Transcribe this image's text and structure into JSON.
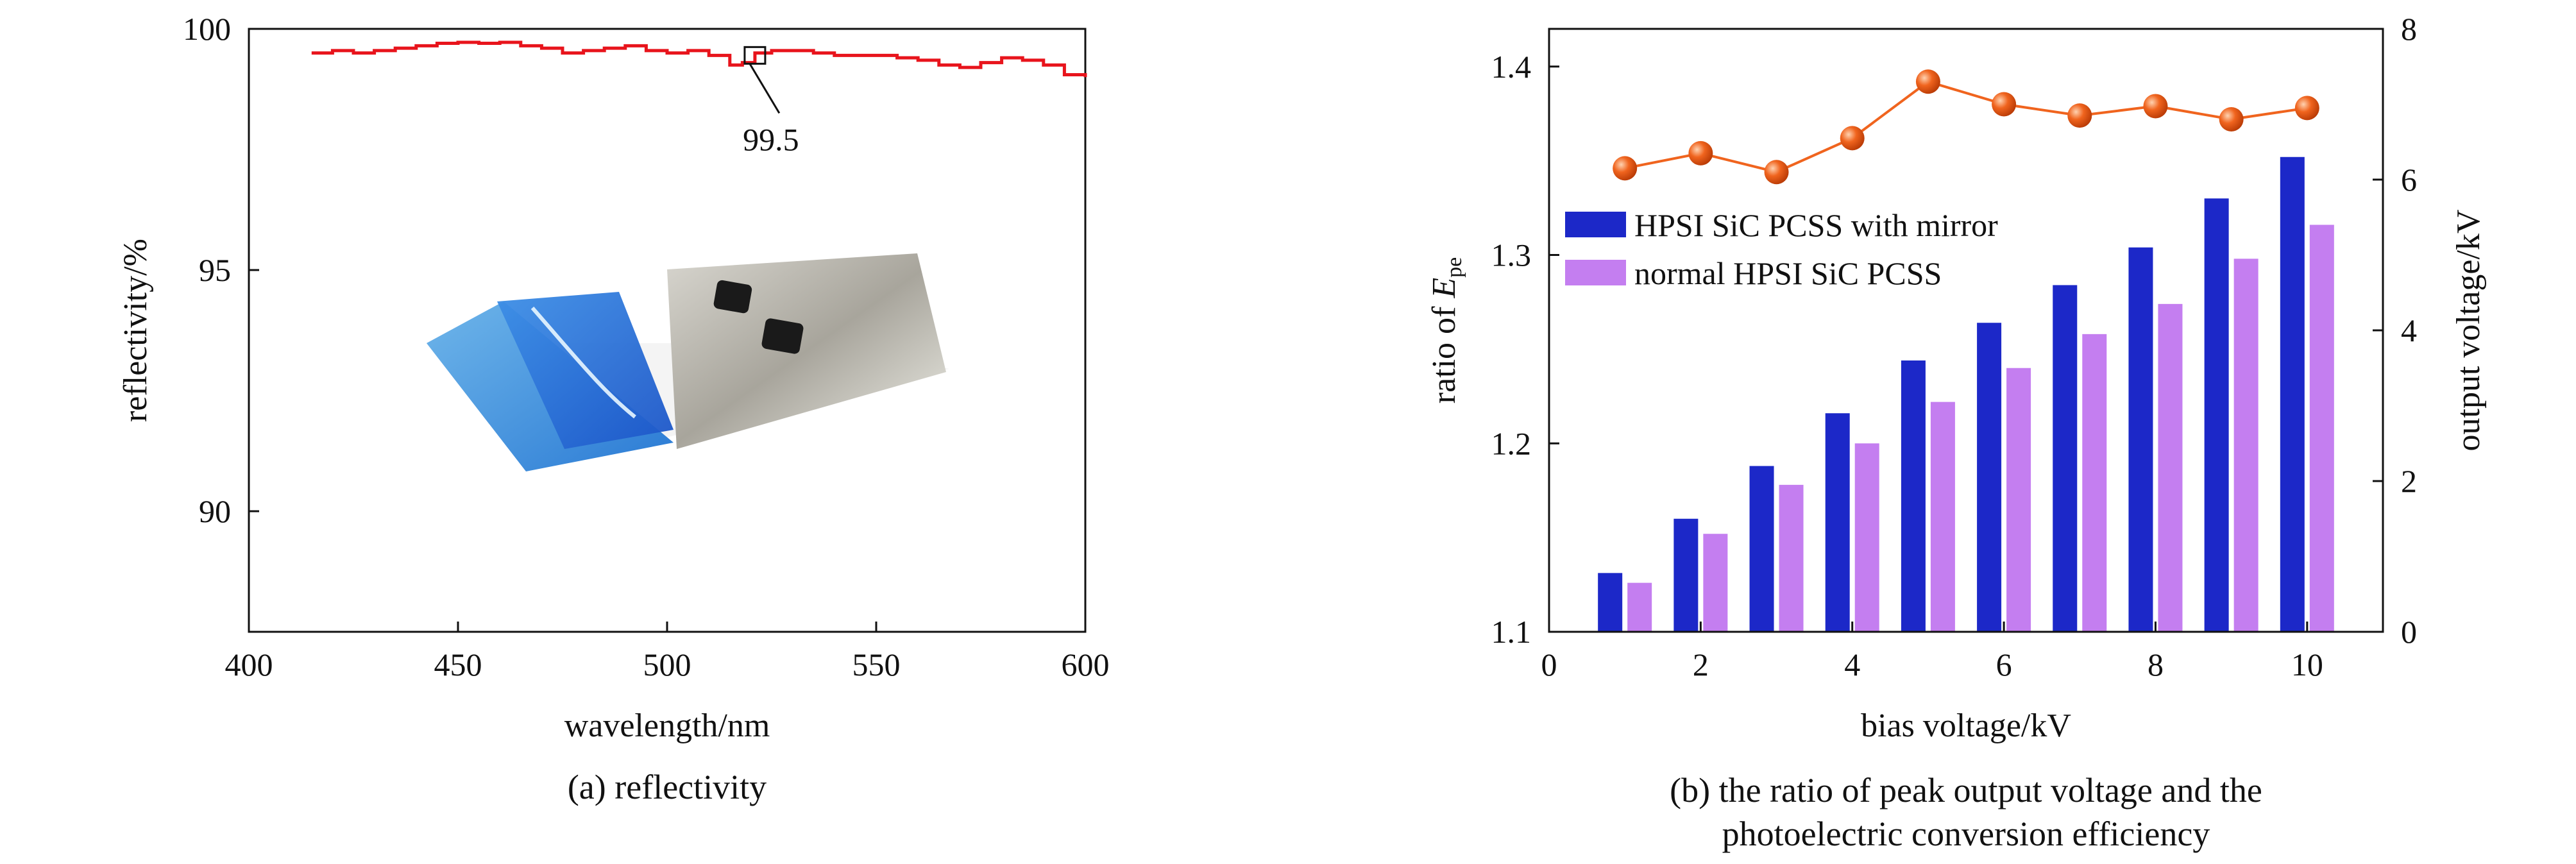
{
  "chart_data": [
    {
      "type": "line",
      "caption": "(a) reflectivity",
      "xlabel": "wavelength/nm",
      "ylabel": "reflectivity/%",
      "xlim": [
        400,
        600
      ],
      "ylim": [
        87.5,
        100
      ],
      "xticks": [
        400,
        450,
        500,
        550,
        600
      ],
      "yticks": [
        90,
        95,
        100
      ],
      "series": [
        {
          "color": "#e8141c",
          "x": [
            415,
            420,
            425,
            430,
            435,
            440,
            445,
            450,
            455,
            460,
            465,
            470,
            475,
            480,
            485,
            490,
            495,
            500,
            505,
            510,
            515,
            518,
            521,
            525,
            530,
            535,
            540,
            545,
            550,
            555,
            560,
            565,
            570,
            575,
            580,
            585,
            590,
            595,
            600
          ],
          "y": [
            99.5,
            99.55,
            99.5,
            99.55,
            99.6,
            99.65,
            99.7,
            99.72,
            99.7,
            99.72,
            99.65,
            99.6,
            99.5,
            99.55,
            99.6,
            99.65,
            99.55,
            99.5,
            99.55,
            99.45,
            99.25,
            99.3,
            99.5,
            99.55,
            99.55,
            99.5,
            99.45,
            99.45,
            99.45,
            99.4,
            99.35,
            99.25,
            99.2,
            99.3,
            99.4,
            99.35,
            99.25,
            99.05,
            99.0
          ]
        }
      ],
      "annotation": {
        "text": "99.5",
        "x": 521,
        "y": 99.45
      },
      "inset": "photo of HPSI SiC PCSS sample with mirror coating"
    },
    {
      "type": "bar",
      "caption_lines": [
        "(b) the ratio of peak output voltage and the",
        "photoelectric conversion efficiency"
      ],
      "xlabel": "bias voltage/kV",
      "ylabel_prefix": "ratio of ",
      "ylabel_symbol": "E",
      "ylabel_subscript": "pe",
      "y2label": "output voltage/kV",
      "xlim": [
        0,
        11
      ],
      "ylim": [
        1.1,
        1.42
      ],
      "y2lim": [
        0,
        8
      ],
      "xticks": [
        0,
        2,
        4,
        6,
        8,
        10
      ],
      "yticks": [
        1.1,
        1.2,
        1.3,
        1.4
      ],
      "y2ticks": [
        0,
        2,
        4,
        6,
        8
      ],
      "categories": [
        1,
        2,
        3,
        4,
        5,
        6,
        7,
        8,
        9,
        10
      ],
      "series": [
        {
          "name": "HPSI SiC PCSS with mirror",
          "axis": "right",
          "color": "#1c28c8",
          "values": [
            0.78,
            1.5,
            2.2,
            2.9,
            3.6,
            4.1,
            4.6,
            5.1,
            5.75,
            6.3
          ]
        },
        {
          "name": "normal HPSI SiC PCSS",
          "axis": "right",
          "color": "#c47ef0",
          "values": [
            0.65,
            1.3,
            1.95,
            2.5,
            3.05,
            3.5,
            3.95,
            4.35,
            4.95,
            5.4
          ]
        },
        {
          "type": "line-marker",
          "axis": "left",
          "color": "#f0641e",
          "values": [
            1.346,
            1.354,
            1.344,
            1.362,
            1.392,
            1.38,
            1.374,
            1.379,
            1.372,
            1.378
          ]
        }
      ],
      "legend": "top-left"
    }
  ]
}
